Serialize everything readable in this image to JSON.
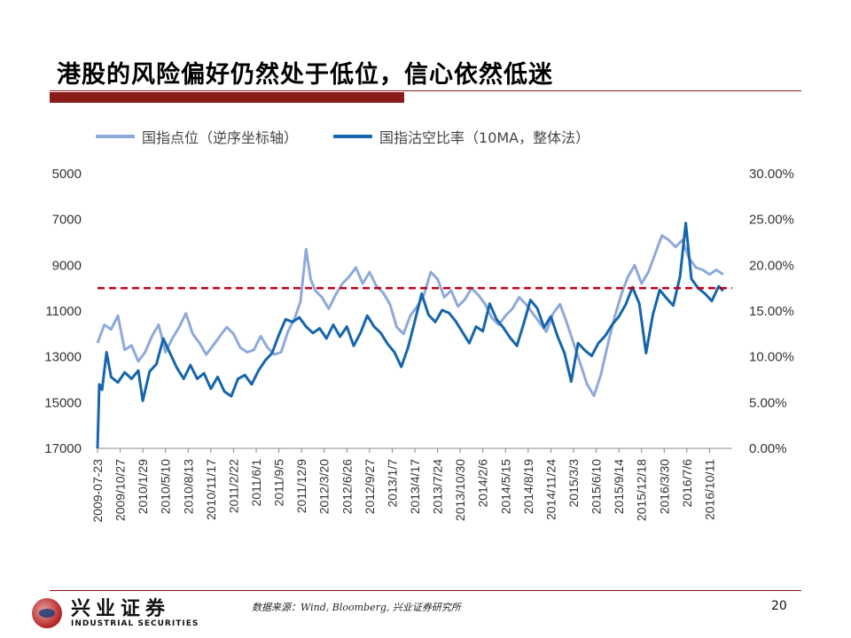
{
  "slide": {
    "title": "港股的风险偏好仍然处于低位，信心依然低迷",
    "source": "数据来源：Wind, Bloomberg, 兴业证券研究所",
    "page_number": "20"
  },
  "logo": {
    "cn": "兴业证券",
    "en": "INDUSTRIAL SECURITIES"
  },
  "colors": {
    "index_line": "#8fa9da",
    "short_line": "#1565ac",
    "threshold": "#c0001a",
    "accent_bar": "#8b1a1a"
  },
  "chart_data": {
    "type": "line",
    "title": "",
    "legend_position": "top",
    "x_categories": [
      "2009-07-23",
      "2009/10/27",
      "2010/1/29",
      "2010/5/10",
      "2010/8/13",
      "2010/11/17",
      "2011/2/22",
      "2011/6/1",
      "2011/9/5",
      "2011/12/9",
      "2012/3/20",
      "2012/6/26",
      "2012/9/27",
      "2013/1/7",
      "2013/4/17",
      "2013/7/24",
      "2013/10/30",
      "2014/2/6",
      "2014/5/15",
      "2014/8/19",
      "2014/11/24",
      "2015/3/3",
      "2015/6/10",
      "2015/9/14",
      "2015/12/18",
      "2016/3/30",
      "2016/7/6",
      "2016/10/11"
    ],
    "x_total": 28,
    "left_axis": {
      "label": "国指点位（逆序坐标轴）",
      "reversed": true,
      "range": [
        5000,
        17000
      ],
      "ticks": [
        5000,
        7000,
        9000,
        11000,
        13000,
        15000,
        17000
      ],
      "tick_labels": [
        "5000",
        "7000",
        "9000",
        "11000",
        "13000",
        "15000",
        "17000"
      ]
    },
    "right_axis": {
      "label": "国指沽空比率（10MA，整体法）",
      "range": [
        0,
        30
      ],
      "ticks": [
        0,
        5,
        10,
        15,
        20,
        25,
        30
      ],
      "tick_labels": [
        "0.00%",
        "5.00%",
        "10.00%",
        "15.00%",
        "20.00%",
        "25.00%",
        "30.00%"
      ]
    },
    "series": [
      {
        "name": "国指点位（逆序坐标轴）",
        "axis": "left",
        "style": "line",
        "points": [
          [
            0,
            12400
          ],
          [
            0.3,
            11600
          ],
          [
            0.6,
            11800
          ],
          [
            0.9,
            11200
          ],
          [
            1.2,
            12700
          ],
          [
            1.5,
            12500
          ],
          [
            1.8,
            13200
          ],
          [
            2.1,
            12800
          ],
          [
            2.4,
            12100
          ],
          [
            2.7,
            11600
          ],
          [
            3,
            12800
          ],
          [
            3.3,
            12200
          ],
          [
            3.6,
            11700
          ],
          [
            3.9,
            11100
          ],
          [
            4.2,
            12000
          ],
          [
            4.5,
            12400
          ],
          [
            4.8,
            12900
          ],
          [
            5.1,
            12500
          ],
          [
            5.4,
            12100
          ],
          [
            5.7,
            11700
          ],
          [
            6,
            12000
          ],
          [
            6.3,
            12600
          ],
          [
            6.6,
            12800
          ],
          [
            6.9,
            12700
          ],
          [
            7.2,
            12100
          ],
          [
            7.5,
            12600
          ],
          [
            7.8,
            12900
          ],
          [
            8.1,
            12800
          ],
          [
            8.4,
            11900
          ],
          [
            8.7,
            11300
          ],
          [
            8.95,
            10600
          ],
          [
            9.2,
            8300
          ],
          [
            9.4,
            9600
          ],
          [
            9.6,
            10100
          ],
          [
            9.9,
            10400
          ],
          [
            10.2,
            10900
          ],
          [
            10.5,
            10300
          ],
          [
            10.8,
            9800
          ],
          [
            11.1,
            9500
          ],
          [
            11.4,
            9100
          ],
          [
            11.7,
            9800
          ],
          [
            12,
            9300
          ],
          [
            12.3,
            9900
          ],
          [
            12.6,
            10200
          ],
          [
            12.9,
            10700
          ],
          [
            13.2,
            11700
          ],
          [
            13.5,
            12000
          ],
          [
            13.8,
            11200
          ],
          [
            14.1,
            10800
          ],
          [
            14.4,
            10300
          ],
          [
            14.7,
            9300
          ],
          [
            15,
            9600
          ],
          [
            15.3,
            10400
          ],
          [
            15.6,
            10100
          ],
          [
            15.9,
            10800
          ],
          [
            16.2,
            10500
          ],
          [
            16.5,
            10000
          ],
          [
            16.8,
            10300
          ],
          [
            17.1,
            10700
          ],
          [
            17.4,
            11300
          ],
          [
            17.7,
            11600
          ],
          [
            18,
            11200
          ],
          [
            18.3,
            10900
          ],
          [
            18.6,
            10400
          ],
          [
            18.9,
            10700
          ],
          [
            19.2,
            11100
          ],
          [
            19.5,
            11500
          ],
          [
            19.8,
            11900
          ],
          [
            20.1,
            11100
          ],
          [
            20.4,
            10700
          ],
          [
            20.7,
            11500
          ],
          [
            21,
            12400
          ],
          [
            21.3,
            13300
          ],
          [
            21.6,
            14200
          ],
          [
            21.9,
            14700
          ],
          [
            22.2,
            13800
          ],
          [
            22.5,
            12500
          ],
          [
            22.8,
            11300
          ],
          [
            23.1,
            10300
          ],
          [
            23.4,
            9500
          ],
          [
            23.7,
            9000
          ],
          [
            24,
            9800
          ],
          [
            24.3,
            9300
          ],
          [
            24.6,
            8500
          ],
          [
            24.9,
            7700
          ],
          [
            25.2,
            7900
          ],
          [
            25.5,
            8200
          ],
          [
            25.8,
            7900
          ],
          [
            26.1,
            8700
          ],
          [
            26.4,
            9100
          ],
          [
            26.7,
            9200
          ],
          [
            27,
            9400
          ],
          [
            27.3,
            9200
          ],
          [
            27.6,
            9400
          ]
        ]
      },
      {
        "name": "国指沽空比率（10MA，整体法）",
        "axis": "right",
        "style": "line",
        "points": [
          [
            0,
            0
          ],
          [
            0.08,
            7
          ],
          [
            0.2,
            6.4
          ],
          [
            0.4,
            10.5
          ],
          [
            0.6,
            7.8
          ],
          [
            0.9,
            7.2
          ],
          [
            1.2,
            8.3
          ],
          [
            1.5,
            7.6
          ],
          [
            1.8,
            8.5
          ],
          [
            2,
            5.2
          ],
          [
            2.3,
            8.4
          ],
          [
            2.6,
            9.2
          ],
          [
            2.9,
            12
          ],
          [
            3.2,
            10.4
          ],
          [
            3.5,
            8.8
          ],
          [
            3.8,
            7.6
          ],
          [
            4.1,
            9.1
          ],
          [
            4.4,
            7.6
          ],
          [
            4.7,
            8.2
          ],
          [
            5,
            6.5
          ],
          [
            5.3,
            7.8
          ],
          [
            5.6,
            6.2
          ],
          [
            5.9,
            5.7
          ],
          [
            6.2,
            7.6
          ],
          [
            6.5,
            8
          ],
          [
            6.8,
            7
          ],
          [
            7.1,
            8.5
          ],
          [
            7.4,
            9.6
          ],
          [
            7.7,
            10.4
          ],
          [
            8,
            12.4
          ],
          [
            8.3,
            14.1
          ],
          [
            8.6,
            13.8
          ],
          [
            8.9,
            14.3
          ],
          [
            9.2,
            13.3
          ],
          [
            9.5,
            12.6
          ],
          [
            9.8,
            13.1
          ],
          [
            10.1,
            12
          ],
          [
            10.4,
            13.5
          ],
          [
            10.7,
            12.2
          ],
          [
            11,
            13.3
          ],
          [
            11.3,
            11.2
          ],
          [
            11.6,
            12.6
          ],
          [
            11.9,
            14.5
          ],
          [
            12.2,
            13.3
          ],
          [
            12.5,
            12.6
          ],
          [
            12.8,
            11.4
          ],
          [
            13.1,
            10.5
          ],
          [
            13.4,
            8.9
          ],
          [
            13.7,
            11
          ],
          [
            14,
            13.9
          ],
          [
            14.3,
            16.9
          ],
          [
            14.6,
            14.6
          ],
          [
            14.9,
            13.8
          ],
          [
            15.2,
            15.1
          ],
          [
            15.5,
            14.8
          ],
          [
            15.8,
            13.9
          ],
          [
            16.1,
            12.7
          ],
          [
            16.4,
            11.5
          ],
          [
            16.7,
            13.3
          ],
          [
            17,
            12.8
          ],
          [
            17.3,
            15.8
          ],
          [
            17.6,
            14.1
          ],
          [
            17.9,
            13.2
          ],
          [
            18.2,
            12.1
          ],
          [
            18.5,
            11.2
          ],
          [
            18.8,
            13.6
          ],
          [
            19.1,
            16.2
          ],
          [
            19.4,
            15.3
          ],
          [
            19.7,
            13.2
          ],
          [
            20,
            14.4
          ],
          [
            20.3,
            12.2
          ],
          [
            20.6,
            10.4
          ],
          [
            20.9,
            7.3
          ],
          [
            21.2,
            11.5
          ],
          [
            21.5,
            10.7
          ],
          [
            21.8,
            10.1
          ],
          [
            22.1,
            11.5
          ],
          [
            22.4,
            12.3
          ],
          [
            22.7,
            13.5
          ],
          [
            23,
            14.4
          ],
          [
            23.3,
            15.7
          ],
          [
            23.6,
            17.6
          ],
          [
            23.9,
            15.8
          ],
          [
            24.2,
            10.4
          ],
          [
            24.5,
            14.6
          ],
          [
            24.8,
            17.3
          ],
          [
            25.1,
            16.4
          ],
          [
            25.4,
            15.6
          ],
          [
            25.7,
            18.8
          ],
          [
            25.95,
            24.6
          ],
          [
            26.2,
            18.5
          ],
          [
            26.5,
            17.5
          ],
          [
            26.8,
            16.9
          ],
          [
            27.1,
            16.1
          ],
          [
            27.4,
            17.7
          ],
          [
            27.6,
            17.2
          ]
        ]
      }
    ],
    "threshold": {
      "axis": "right",
      "value": 17.5,
      "style": "dashed"
    }
  }
}
